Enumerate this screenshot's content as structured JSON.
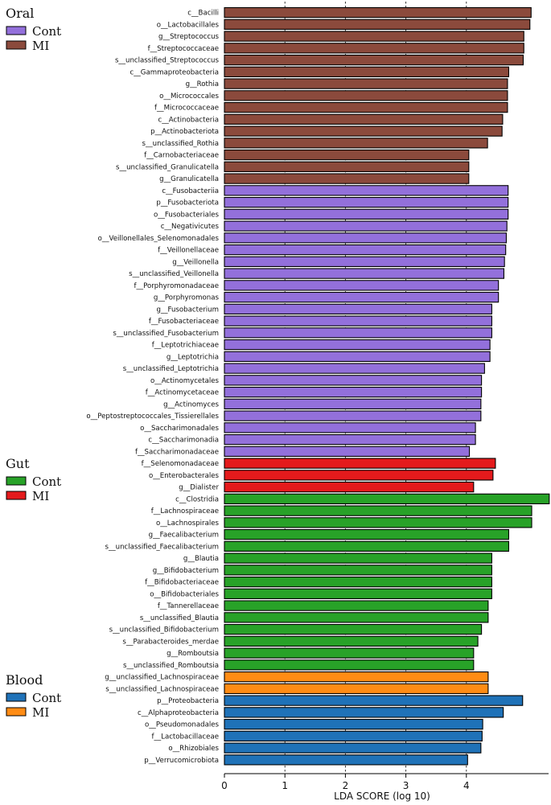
{
  "chart_data": {
    "type": "bar",
    "orientation": "horizontal",
    "xlabel": "LDA SCORE (log 10)",
    "xlim": [
      0,
      5.4
    ],
    "xticks": [
      0,
      1,
      2,
      3,
      4
    ],
    "gridlines_at": [
      1,
      2,
      3,
      4
    ],
    "colors": {
      "Oral": {
        "Cont": "#9370DB",
        "MI": "#8B4A3C"
      },
      "Gut": {
        "Cont": "#28A228",
        "MI": "#E41A1C"
      },
      "Blood": {
        "Cont": "#1F72B8",
        "MI": "#FF8C14"
      }
    },
    "legends": [
      {
        "group": "Oral",
        "title": "Oral",
        "entries": [
          {
            "label": "Cont",
            "color": "#9370DB"
          },
          {
            "label": "MI",
            "color": "#8B4A3C"
          }
        ]
      },
      {
        "group": "Gut",
        "title": "Gut",
        "entries": [
          {
            "label": "Cont",
            "color": "#28A228"
          },
          {
            "label": "MI",
            "color": "#E41A1C"
          }
        ]
      },
      {
        "group": "Blood",
        "title": "Blood",
        "entries": [
          {
            "label": "Cont",
            "color": "#1F72B8"
          },
          {
            "label": "MI",
            "color": "#FF8C14"
          }
        ]
      }
    ],
    "bars": [
      {
        "label": "c__Bacilli",
        "value": 5.07,
        "group": "Oral",
        "class": "MI"
      },
      {
        "label": "o__Lactobacillales",
        "value": 5.05,
        "group": "Oral",
        "class": "MI"
      },
      {
        "label": "g__Streptococcus",
        "value": 4.95,
        "group": "Oral",
        "class": "MI"
      },
      {
        "label": "f__Streptococcaceae",
        "value": 4.95,
        "group": "Oral",
        "class": "MI"
      },
      {
        "label": "s__unclassified_Streptococcus",
        "value": 4.94,
        "group": "Oral",
        "class": "MI"
      },
      {
        "label": "c__Gammaproteobacteria",
        "value": 4.7,
        "group": "Oral",
        "class": "MI"
      },
      {
        "label": "g__Rothia",
        "value": 4.68,
        "group": "Oral",
        "class": "MI"
      },
      {
        "label": "o__Micrococcales",
        "value": 4.68,
        "group": "Oral",
        "class": "MI"
      },
      {
        "label": "f__Micrococcaceae",
        "value": 4.68,
        "group": "Oral",
        "class": "MI"
      },
      {
        "label": "c__Actinobacteria",
        "value": 4.6,
        "group": "Oral",
        "class": "MI"
      },
      {
        "label": "p__Actinobacteriota",
        "value": 4.59,
        "group": "Oral",
        "class": "MI"
      },
      {
        "label": "s__unclassified_Rothia",
        "value": 4.35,
        "group": "Oral",
        "class": "MI"
      },
      {
        "label": "f__Carnobacteriaceae",
        "value": 4.04,
        "group": "Oral",
        "class": "MI"
      },
      {
        "label": "s__unclassified_Granulicatella",
        "value": 4.04,
        "group": "Oral",
        "class": "MI"
      },
      {
        "label": "g__Granulicatella",
        "value": 4.04,
        "group": "Oral",
        "class": "MI"
      },
      {
        "label": "c__Fusobacteriia",
        "value": 4.69,
        "group": "Oral",
        "class": "Cont"
      },
      {
        "label": "p__Fusobacteriota",
        "value": 4.69,
        "group": "Oral",
        "class": "Cont"
      },
      {
        "label": "o__Fusobacteriales",
        "value": 4.69,
        "group": "Oral",
        "class": "Cont"
      },
      {
        "label": "c__Negativicutes",
        "value": 4.67,
        "group": "Oral",
        "class": "Cont"
      },
      {
        "label": "o__Veillonellales_Selenomonadales",
        "value": 4.66,
        "group": "Oral",
        "class": "Cont"
      },
      {
        "label": "f__Veillonellaceae",
        "value": 4.65,
        "group": "Oral",
        "class": "Cont"
      },
      {
        "label": "g__Veillonella",
        "value": 4.63,
        "group": "Oral",
        "class": "Cont"
      },
      {
        "label": "s__unclassified_Veillonella",
        "value": 4.62,
        "group": "Oral",
        "class": "Cont"
      },
      {
        "label": "f__Porphyromonadaceae",
        "value": 4.53,
        "group": "Oral",
        "class": "Cont"
      },
      {
        "label": "g__Porphyromonas",
        "value": 4.53,
        "group": "Oral",
        "class": "Cont"
      },
      {
        "label": "g__Fusobacterium",
        "value": 4.42,
        "group": "Oral",
        "class": "Cont"
      },
      {
        "label": "f__Fusobacteriaceae",
        "value": 4.42,
        "group": "Oral",
        "class": "Cont"
      },
      {
        "label": "s__unclassified_Fusobacterium",
        "value": 4.42,
        "group": "Oral",
        "class": "Cont"
      },
      {
        "label": "f__Leptotrichiaceae",
        "value": 4.39,
        "group": "Oral",
        "class": "Cont"
      },
      {
        "label": "g__Leptotrichia",
        "value": 4.39,
        "group": "Oral",
        "class": "Cont"
      },
      {
        "label": "s__unclassified_Leptotrichia",
        "value": 4.3,
        "group": "Oral",
        "class": "Cont"
      },
      {
        "label": "o__Actinomycetales",
        "value": 4.25,
        "group": "Oral",
        "class": "Cont"
      },
      {
        "label": "f__Actinomycetaceae",
        "value": 4.25,
        "group": "Oral",
        "class": "Cont"
      },
      {
        "label": "g__Actinomyces",
        "value": 4.24,
        "group": "Oral",
        "class": "Cont"
      },
      {
        "label": "o__Peptostreptococcales_Tissierellales",
        "value": 4.24,
        "group": "Oral",
        "class": "Cont"
      },
      {
        "label": "o__Saccharimonadales",
        "value": 4.15,
        "group": "Oral",
        "class": "Cont"
      },
      {
        "label": "c__Saccharimonadia",
        "value": 4.15,
        "group": "Oral",
        "class": "Cont"
      },
      {
        "label": "f__Saccharimonadaceae",
        "value": 4.05,
        "group": "Oral",
        "class": "Cont"
      },
      {
        "label": "f__Selenomonadaceae",
        "value": 4.48,
        "group": "Gut",
        "class": "MI"
      },
      {
        "label": "o__Enterobacterales",
        "value": 4.44,
        "group": "Gut",
        "class": "MI"
      },
      {
        "label": "g__Dialister",
        "value": 4.12,
        "group": "Gut",
        "class": "MI"
      },
      {
        "label": "c__Clostridia",
        "value": 5.37,
        "group": "Gut",
        "class": "Cont"
      },
      {
        "label": "f__Lachnospiraceae",
        "value": 5.08,
        "group": "Gut",
        "class": "Cont"
      },
      {
        "label": "o__Lachnospirales",
        "value": 5.08,
        "group": "Gut",
        "class": "Cont"
      },
      {
        "label": "g__Faecalibacterium",
        "value": 4.7,
        "group": "Gut",
        "class": "Cont"
      },
      {
        "label": "s__unclassified_Faecalibacterium",
        "value": 4.7,
        "group": "Gut",
        "class": "Cont"
      },
      {
        "label": "g__Blautia",
        "value": 4.42,
        "group": "Gut",
        "class": "Cont"
      },
      {
        "label": "g__Bifidobacterium",
        "value": 4.42,
        "group": "Gut",
        "class": "Cont"
      },
      {
        "label": "f__Bifidobacteriaceae",
        "value": 4.42,
        "group": "Gut",
        "class": "Cont"
      },
      {
        "label": "o__Bifidobacteriales",
        "value": 4.42,
        "group": "Gut",
        "class": "Cont"
      },
      {
        "label": "f__Tannerellaceae",
        "value": 4.36,
        "group": "Gut",
        "class": "Cont"
      },
      {
        "label": "s__unclassified_Blautia",
        "value": 4.36,
        "group": "Gut",
        "class": "Cont"
      },
      {
        "label": "s__unclassified_Bifidobacterium",
        "value": 4.25,
        "group": "Gut",
        "class": "Cont"
      },
      {
        "label": "s__Parabacteroides_merdae",
        "value": 4.19,
        "group": "Gut",
        "class": "Cont"
      },
      {
        "label": "g__Romboutsia",
        "value": 4.12,
        "group": "Gut",
        "class": "Cont"
      },
      {
        "label": "s__unclassified_Romboutsia",
        "value": 4.12,
        "group": "Gut",
        "class": "Cont"
      },
      {
        "label": "g__unclassified_Lachnospiraceae",
        "value": 4.36,
        "group": "Blood",
        "class": "MI"
      },
      {
        "label": "s__unclassified_Lachnospiraceae",
        "value": 4.36,
        "group": "Blood",
        "class": "MI"
      },
      {
        "label": "p__Proteobacteria",
        "value": 4.93,
        "group": "Blood",
        "class": "Cont"
      },
      {
        "label": "c__Alphaproteobacteria",
        "value": 4.61,
        "group": "Blood",
        "class": "Cont"
      },
      {
        "label": "o__Pseudomonadales",
        "value": 4.27,
        "group": "Blood",
        "class": "Cont"
      },
      {
        "label": "f__Lactobacillaceae",
        "value": 4.26,
        "group": "Blood",
        "class": "Cont"
      },
      {
        "label": "o__Rhizobiales",
        "value": 4.24,
        "group": "Blood",
        "class": "Cont"
      },
      {
        "label": "p__Verrucomicrobiota",
        "value": 4.02,
        "group": "Blood",
        "class": "Cont"
      }
    ]
  }
}
